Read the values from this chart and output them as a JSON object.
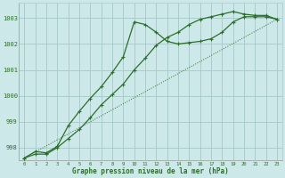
{
  "title": "Graphe pression niveau de la mer (hPa)",
  "background_color": "#cce8e8",
  "grid_color": "#aacccc",
  "line_color": "#2d6e2d",
  "xlim": [
    -0.5,
    23.5
  ],
  "ylim": [
    997.5,
    1003.6
  ],
  "yticks": [
    998,
    999,
    1000,
    1001,
    1002,
    1003
  ],
  "xticks": [
    0,
    1,
    2,
    3,
    4,
    5,
    6,
    7,
    8,
    9,
    10,
    11,
    12,
    13,
    14,
    15,
    16,
    17,
    18,
    19,
    20,
    21,
    22,
    23
  ],
  "series1_x": [
    0,
    1,
    2,
    3,
    4,
    5,
    6,
    7,
    8,
    9,
    10,
    11,
    12,
    13,
    14,
    15,
    16,
    17,
    18,
    19,
    20,
    21,
    22,
    23
  ],
  "series1_y": [
    997.6,
    997.85,
    997.8,
    998.05,
    998.85,
    999.4,
    999.9,
    1000.35,
    1000.9,
    1001.5,
    1002.85,
    1002.75,
    1002.45,
    1002.1,
    1002.0,
    1002.05,
    1002.1,
    1002.2,
    1002.45,
    1002.85,
    1003.05,
    1003.05,
    1003.05,
    1002.95
  ],
  "series2_x": [
    0,
    1,
    2,
    3,
    4,
    5,
    6,
    7,
    8,
    9,
    10,
    11,
    12,
    13,
    14,
    15,
    16,
    17,
    18,
    19,
    20,
    21,
    22,
    23
  ],
  "series2_y": [
    997.6,
    997.75,
    997.75,
    998.0,
    998.35,
    998.7,
    999.15,
    999.65,
    1000.05,
    1000.45,
    1001.0,
    1001.45,
    1001.95,
    1002.25,
    1002.45,
    1002.75,
    1002.95,
    1003.05,
    1003.15,
    1003.25,
    1003.15,
    1003.1,
    1003.1,
    1002.95
  ],
  "series3_x": [
    0,
    23
  ],
  "series3_y": [
    997.6,
    1002.95
  ]
}
